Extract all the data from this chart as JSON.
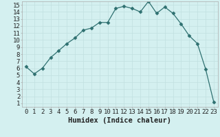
{
  "xlabel": "Humidex (Indice chaleur)",
  "x": [
    0,
    1,
    2,
    3,
    4,
    5,
    6,
    7,
    8,
    9,
    10,
    11,
    12,
    13,
    14,
    15,
    16,
    17,
    18,
    19,
    20,
    21,
    22,
    23
  ],
  "y": [
    6.2,
    5.2,
    6.0,
    7.5,
    8.5,
    9.5,
    10.3,
    11.4,
    11.7,
    12.5,
    12.5,
    14.5,
    14.8,
    14.5,
    14.0,
    15.5,
    13.8,
    14.7,
    13.8,
    12.3,
    10.6,
    9.5,
    5.9,
    1.2
  ],
  "line_color": "#2e7070",
  "marker": "D",
  "marker_size": 2.5,
  "bg_color": "#d4f0f0",
  "grid_major_color": "#c0e0e0",
  "grid_minor_color": "#daf4f4",
  "tick_label_fontsize": 6.5,
  "xlabel_fontsize": 7.5,
  "yticks": [
    1,
    2,
    3,
    4,
    5,
    6,
    7,
    8,
    9,
    10,
    11,
    12,
    13,
    14,
    15
  ],
  "xticks": [
    0,
    1,
    2,
    3,
    4,
    5,
    6,
    7,
    8,
    9,
    10,
    11,
    12,
    13,
    14,
    15,
    16,
    17,
    18,
    19,
    20,
    21,
    22,
    23
  ]
}
